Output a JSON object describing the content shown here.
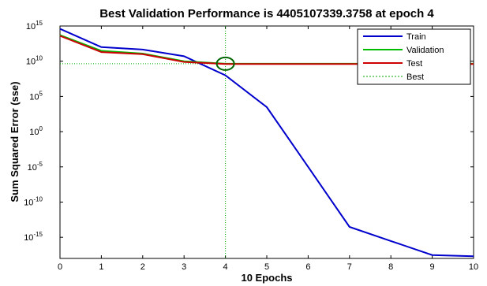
{
  "chart_data": {
    "type": "line",
    "title": "Best Validation Performance is 4405107339.3758 at epoch 4",
    "xlabel": "10 Epochs",
    "ylabel": "Sum Squared Error  (sse)",
    "y_scale": "log",
    "xlim": [
      0,
      10
    ],
    "ylim_exponent": [
      -18,
      15
    ],
    "x_ticks": [
      "0",
      "1",
      "2",
      "3",
      "4",
      "5",
      "6",
      "7",
      "8",
      "9",
      "10"
    ],
    "y_ticks": [
      {
        "base": "10",
        "exp": "15"
      },
      {
        "base": "10",
        "exp": "10"
      },
      {
        "base": "10",
        "exp": "5"
      },
      {
        "base": "10",
        "exp": "0"
      },
      {
        "base": "10",
        "exp": "-5"
      },
      {
        "base": "10",
        "exp": "-10"
      },
      {
        "base": "10",
        "exp": "-15"
      }
    ],
    "legend_position": "top-right",
    "series": [
      {
        "name": "Train",
        "color": "#0000cc",
        "x": [
          0,
          1,
          2,
          3,
          4,
          5,
          6,
          7,
          8,
          9,
          10
        ],
        "y": [
          400000000000000.0,
          1000000000000.0,
          450000000000.0,
          50000000000.0,
          100000000.0,
          3000.0,
          1e-05,
          3e-14,
          3e-16,
          3e-18,
          2e-18
        ]
      },
      {
        "name": "Validation",
        "color": "#00bb00",
        "x": [
          0,
          1,
          2,
          3,
          4,
          5,
          6,
          7,
          8,
          9,
          10
        ],
        "y": [
          50000000000000.0,
          300000000000.0,
          120000000000.0,
          10000000000.0,
          4400000000.0,
          4400000000.0,
          4400000000.0,
          4400000000.0,
          4400000000.0,
          4400000000.0,
          4400000000.0
        ]
      },
      {
        "name": "Test",
        "color": "#cc0000",
        "x": [
          0,
          1,
          2,
          3,
          4,
          5,
          6,
          7,
          8,
          9,
          10
        ],
        "y": [
          40000000000000.0,
          200000000000.0,
          100000000000.0,
          8000000000.0,
          4000000000.0,
          4000000000.0,
          4000000000.0,
          4000000000.0,
          4000000000.0,
          4000000000.0,
          4000000000.0
        ]
      },
      {
        "name": "Best",
        "color": "#00aa00"
      }
    ],
    "best": {
      "epoch": 4,
      "value": 4405107339.3758
    }
  }
}
